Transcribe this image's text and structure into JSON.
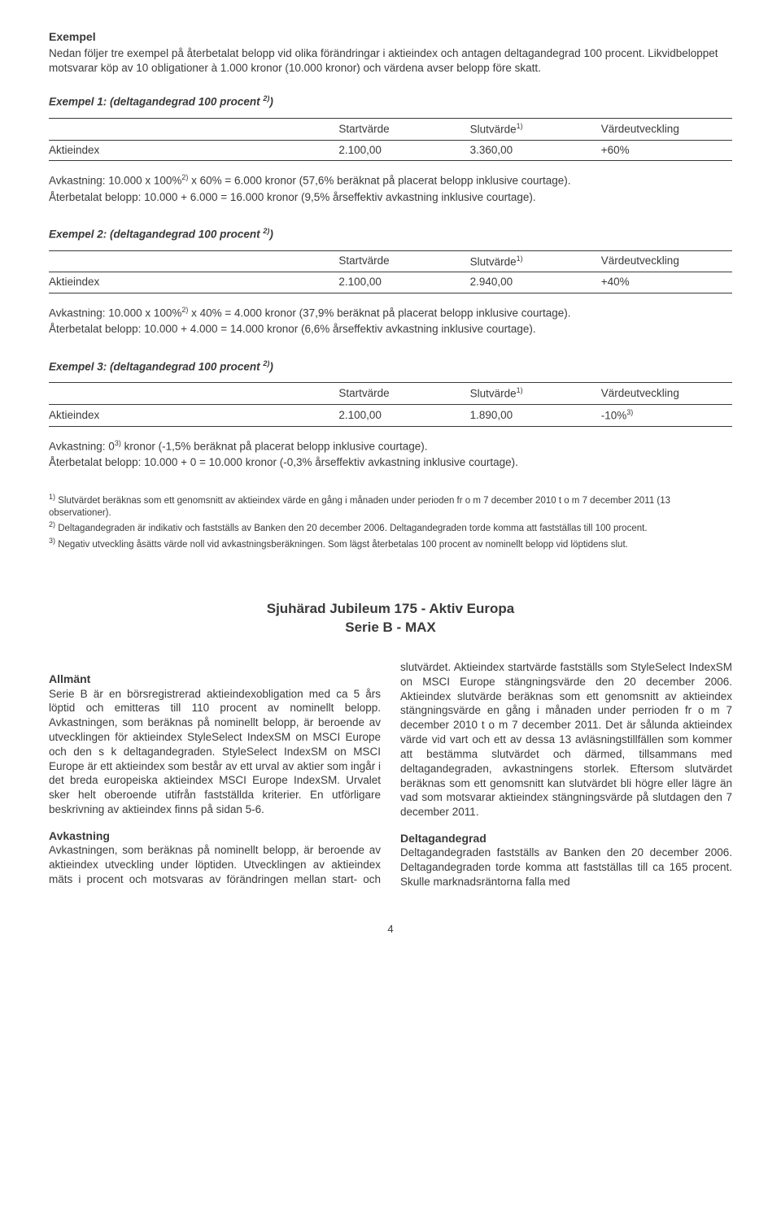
{
  "header": {
    "title": "Exempel",
    "intro": "Nedan följer tre exempel på återbetalat belopp vid olika förändringar i aktieindex och antagen deltagandegrad 100 procent. Likvidbeloppet motsvarar köp av 10 obligationer à 1.000 kronor (10.000 kronor) och värdena avser belopp före skatt."
  },
  "columns": {
    "c1": "Startvärde",
    "c2": "Slutvärde",
    "c2_sup": "1)",
    "c3": "Värdeutveckling",
    "row_label": "Aktieindex"
  },
  "ex1": {
    "heading": "Exempel 1: (deltagandegrad 100 procent ",
    "heading_sup": "2)",
    "heading_close": ")",
    "start": "2.100,00",
    "end": "3.360,00",
    "dev": "+60%",
    "calc1a": "Avkastning: 10.000 x 100%",
    "calc1_sup": "2)",
    "calc1b": " x 60% = 6.000 kronor (57,6% beräknat på placerat belopp inklusive courtage).",
    "calc2": "Återbetalat belopp: 10.000 + 6.000 = 16.000 kronor (9,5% årseffektiv avkastning inklusive courtage)."
  },
  "ex2": {
    "heading": "Exempel 2: (deltagandegrad 100 procent ",
    "heading_sup": "2)",
    "heading_close": ")",
    "start": "2.100,00",
    "end": "2.940,00",
    "dev": "+40%",
    "calc1a": "Avkastning: 10.000 x 100%",
    "calc1_sup": "2)",
    "calc1b": " x 40% = 4.000 kronor (37,9% beräknat på placerat belopp inklusive courtage).",
    "calc2": "Återbetalat belopp: 10.000 + 4.000 = 14.000 kronor (6,6% årseffektiv avkastning inklusive courtage)."
  },
  "ex3": {
    "heading": "Exempel 3: (deltagandegrad 100 procent ",
    "heading_sup": "2)",
    "heading_close": ")",
    "start": "2.100,00",
    "end": "1.890,00",
    "dev": "-10%",
    "dev_sup": "3)",
    "calc1": "Avkastning: 0",
    "calc1_sup": "3)",
    "calc1b": " kronor (-1,5% beräknat på placerat belopp inklusive courtage).",
    "calc2": "Återbetalat belopp: 10.000 + 0 = 10.000 kronor (-0,3% årseffektiv avkastning inklusive courtage)."
  },
  "footnotes": {
    "f1_sup": "1)",
    "f1": " Slutvärdet beräknas som ett genomsnitt av aktieindex värde en gång i månaden under perioden fr o m 7 december 2010 t o m 7 december 2011 (13 observationer).",
    "f2_sup": "2)",
    "f2": " Deltagandegraden är indikativ och fastställs av Banken den 20 december 2006. Deltagandegraden torde komma att fastställas till 100 procent.",
    "f3_sup": "3)",
    "f3": " Negativ utveckling åsätts värde noll vid avkastningsberäkningen. Som lägst återbetalas 100 procent av nominellt belopp vid löptidens slut."
  },
  "section": {
    "title_l1": "Sjuhärad Jubileum 175 - Aktiv Europa",
    "title_l2": "Serie B - MAX",
    "allmant_h": "Allmänt",
    "allmant_p": "Serie B är en börsregistrerad aktieindexobligation med ca 5 års löptid och emitteras till 110 procent av nominellt belopp. Avkastningen, som beräknas på nominellt belopp, är beroende av utvecklingen för aktieindex StyleSelect IndexSM on MSCI Europe och den s k deltagandegraden. StyleSelect IndexSM on MSCI Europe är ett aktieindex som består av ett urval av aktier som ingår i det breda europeiska aktieindex MSCI Europe IndexSM. Urvalet sker helt oberoende utifrån fastställda kriterier. En utförligare beskrivning av aktieindex finns på sidan 5-6.",
    "avkast_h": "Avkastning",
    "avkast_p": "Avkastningen, som beräknas på nominellt belopp, är beroende av aktieindex utveckling under löptiden. Utvecklingen av aktieindex mäts i procent och motsvaras av förändringen mellan start- och slutvärdet. Aktieindex startvärde fastställs som StyleSelect IndexSM on MSCI Europe stängningsvärde den 20 december 2006. Aktieindex slutvärde beräknas som ett genomsnitt av aktieindex stängningsvärde en gång i månaden under perrioden fr o m 7 december 2010 t o m 7 december 2011. Det är sålunda aktieindex värde vid vart och ett av dessa 13 avläsningstillfällen som kommer att bestämma slutvärdet och därmed, tillsammans med deltagandegraden, avkastningens storlek. Eftersom slutvärdet beräknas som ett genomsnitt kan slutvärdet bli högre eller lägre än vad som motsvarar aktieindex stängningsvärde på slutdagen den 7 december 2011.",
    "delt_h": "Deltagandegrad",
    "delt_p": "Deltagandegraden fastställs av Banken den 20 december 2006. Deltagandegraden torde komma att fastställas till ca 165 procent. Skulle marknadsräntorna falla med"
  },
  "pagenum": "4"
}
